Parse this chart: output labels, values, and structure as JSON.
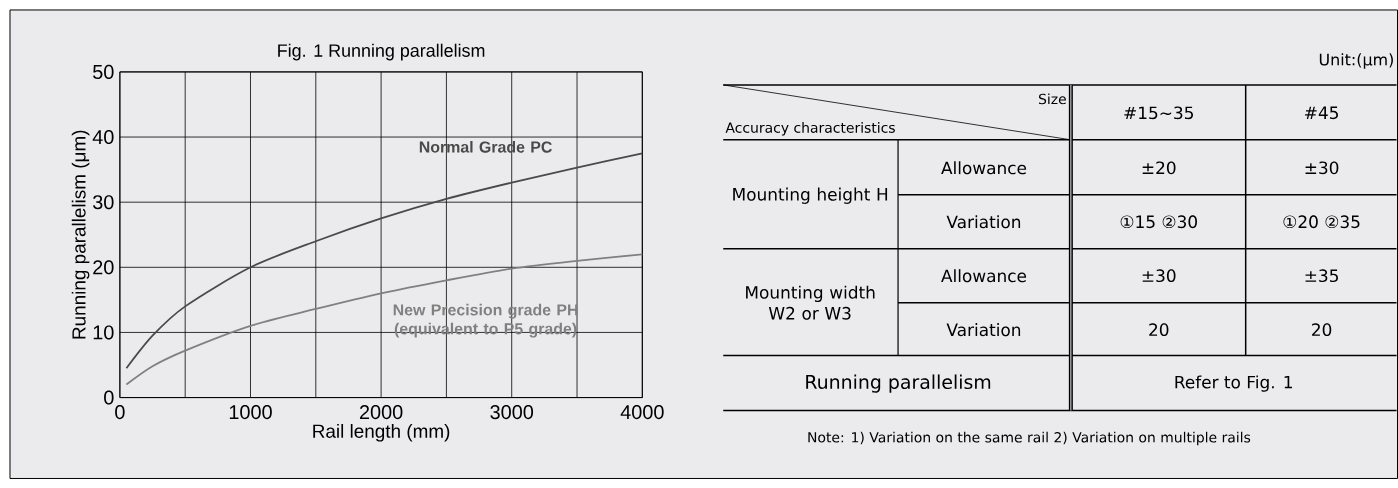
{
  "chart_data": [
    {
      "type": "line",
      "title": "Fig. 1 Running parallelism",
      "xlabel": "Rail length (mm)",
      "ylabel": "Running parallelism (μm)",
      "x": [
        50,
        250,
        500,
        1000,
        1500,
        2000,
        2500,
        3000,
        3500,
        4000
      ],
      "series": [
        {
          "name": "Normal Grade PC",
          "color": "#4a4a4a",
          "values": [
            4.5,
            9.5,
            14,
            20,
            24,
            27.5,
            30.5,
            33,
            35.3,
            37.5
          ]
        },
        {
          "name": "New Precision grade PH (equivalent to P5 grade)",
          "color": "#808080",
          "values": [
            2,
            4.8,
            7.2,
            11,
            13.6,
            16,
            18,
            19.8,
            21,
            22
          ]
        }
      ],
      "xlim": [
        0,
        4000
      ],
      "ylim": [
        0,
        50
      ],
      "xticks": [
        0,
        {
          "value": 500,
          "label": null
        },
        1000,
        {
          "value": 1500,
          "label": null
        },
        2000,
        {
          "value": 2500,
          "label": null
        },
        3000,
        {
          "value": 3500,
          "label": null
        },
        4000
      ],
      "yticks": [
        0,
        10,
        20,
        30,
        40,
        50
      ],
      "grid": true
    },
    {
      "type": "other",
      "annotations": [
        "Unit:(μm)",
        "Size",
        "Accuracy characteristics",
        "#15~35",
        "#45",
        "Mounting height H",
        "Allowance",
        "±20",
        "±30",
        "Variation",
        "①15 ②30",
        "①20 ②35",
        "Mounting width W2 or W3",
        "Allowance",
        "±30",
        "±35",
        "Variation",
        "20",
        "20",
        "Running parallelism",
        "Refer to Fig. 1",
        "Note: 1) Variation on the same rail  2) Variation on multiple rails"
      ]
    }
  ]
}
